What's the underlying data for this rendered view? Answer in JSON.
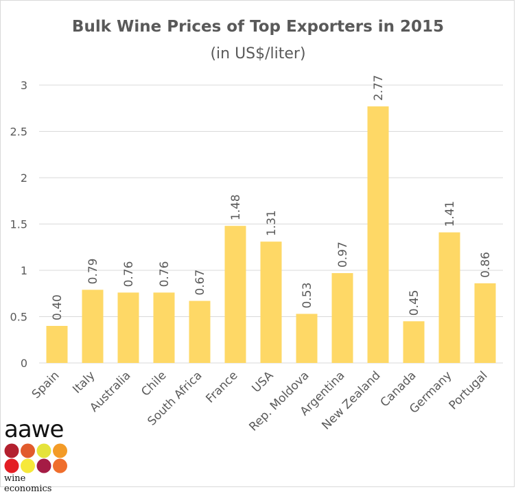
{
  "chart_data": {
    "type": "bar",
    "title": "Bulk Wine Prices of Top Exporters in 2015",
    "subtitle": "(in US$/liter)",
    "categories": [
      "Spain",
      "Italy",
      "Australia",
      "Chile",
      "South Africa",
      "France",
      "USA",
      "Rep. Moldova",
      "Argentina",
      "New Zealand",
      "Canada",
      "Germany",
      "Portugal"
    ],
    "values": [
      0.4,
      0.79,
      0.76,
      0.76,
      0.67,
      1.48,
      1.31,
      0.53,
      0.97,
      2.77,
      0.45,
      1.41,
      0.86
    ],
    "data_labels": [
      "0.40",
      "0.79",
      "0.76",
      "0.76",
      "0.67",
      "1.48",
      "1.31",
      "0.53",
      "0.97",
      "2.77",
      "0.45",
      "1.41",
      "0.86"
    ],
    "yticks": [
      "0",
      "0.5",
      "1",
      "1.5",
      "2",
      "2.5",
      "3"
    ],
    "ylim": [
      0,
      3
    ],
    "grid": true,
    "legend": "none",
    "colors": {
      "bar": "#FED866",
      "grid": "#d9d9d9",
      "text": "#595959"
    }
  },
  "logo": {
    "word": "aawe",
    "tagline": "wine economics",
    "dot_colors": [
      "#B3202E",
      "#E15B2C",
      "#E5E33A",
      "#F39B27",
      "#E31E24",
      "#F6E83A",
      "#A51C45",
      "#EF6E2C"
    ]
  }
}
